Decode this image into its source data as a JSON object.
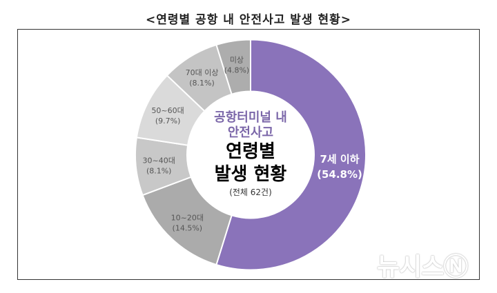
{
  "chart_data": {
    "type": "pie",
    "variant": "donut",
    "title": "<연령별 공항 내 안전사고 발생 현황>",
    "center_text": {
      "subtitle_lines": [
        "공항터미널 내",
        "안전사고"
      ],
      "main_lines": [
        "연령별",
        "발생 현황"
      ],
      "total": "(전체 62건)"
    },
    "slices": [
      {
        "label": "7세 이하",
        "value": 54.8,
        "display": "(54.8%)",
        "color": "#8a73ba"
      },
      {
        "label": "10~20대",
        "value": 14.5,
        "display": "(14.5%)",
        "color": "#ababab"
      },
      {
        "label": "30~40대",
        "value": 8.1,
        "display": "(8.1%)",
        "color": "#c8c8c8"
      },
      {
        "label": "50~60대",
        "value": 9.7,
        "display": "(9.7%)",
        "color": "#dadada"
      },
      {
        "label": "70대 이상",
        "value": 8.1,
        "display": "(8.1%)",
        "color": "#c4c4c4"
      },
      {
        "label": "미상",
        "value": 4.8,
        "display": "(4.8%)",
        "color": "#adadad"
      }
    ],
    "categories": [
      "7세 이하",
      "10~20대",
      "30~40대",
      "50~60대",
      "70대 이상",
      "미상"
    ],
    "values": [
      54.8,
      14.5,
      8.1,
      9.7,
      8.1,
      4.8
    ],
    "unit": "%",
    "total_count": 62,
    "legend": "none (labels on slices)"
  },
  "watermark": "뉴시스Ⓝ"
}
